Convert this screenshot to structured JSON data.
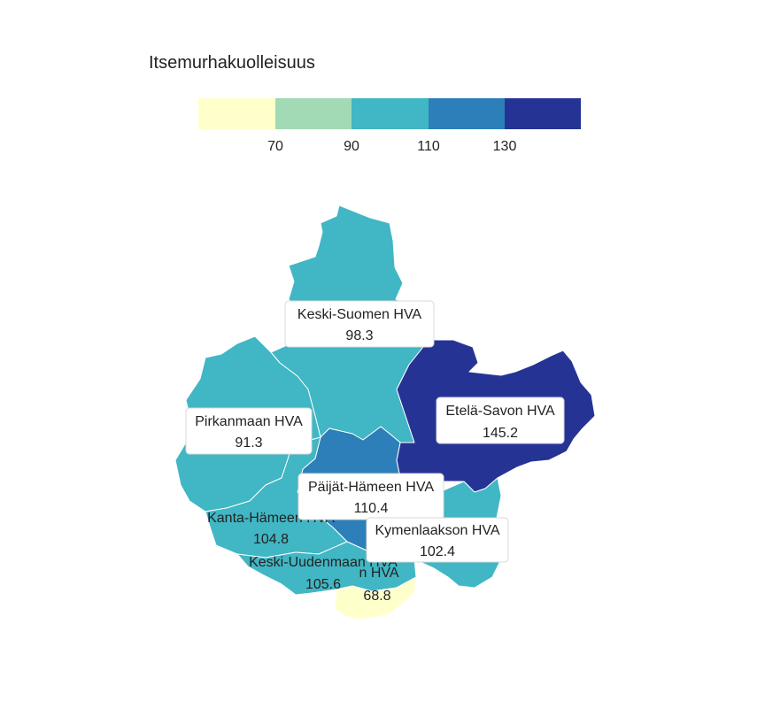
{
  "legend": {
    "title": "Itsemurhakuolleisuus",
    "colors": [
      "#ffffcc",
      "#a1dab4",
      "#41b6c4",
      "#2c7fb8",
      "#253494"
    ],
    "ticks": [
      "70",
      "90",
      "110",
      "130"
    ]
  },
  "regions": [
    {
      "id": "keski-suomi",
      "name": "Keski-Suomen HVA",
      "value": "98.3",
      "color": "#41b6c4"
    },
    {
      "id": "pirkanmaa",
      "name": "Pirkanmaan HVA",
      "value": "91.3",
      "color": "#41b6c4"
    },
    {
      "id": "etela-savo",
      "name": "Etelä-Savon HVA",
      "value": "145.2",
      "color": "#253494"
    },
    {
      "id": "paijat-hame",
      "name": "Päijät-Hämeen HVA",
      "value": "110.4",
      "color": "#2c7fb8"
    },
    {
      "id": "kanta-hame",
      "name": "Kanta-Hämeen HVA",
      "value": "104.8",
      "color": "#41b6c4"
    },
    {
      "id": "kymenlaakso",
      "name": "Kymenlaakson HVA",
      "value": "102.4",
      "color": "#41b6c4"
    },
    {
      "id": "keski-uusimaa",
      "name": "Keski-Uudenmaan HVA",
      "value": "105.6",
      "color": "#41b6c4"
    },
    {
      "id": "ita-uusimaa",
      "name": "n HVA",
      "value": "68.8",
      "color": "#ffffcc"
    }
  ]
}
